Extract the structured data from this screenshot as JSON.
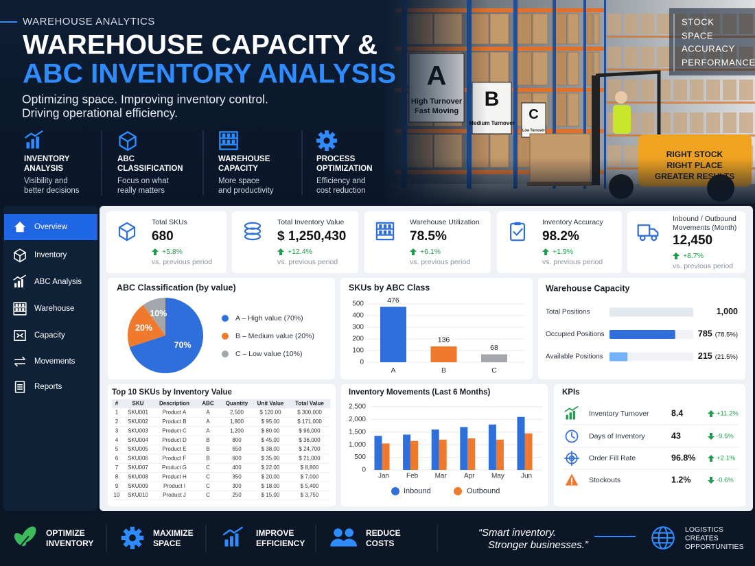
{
  "header": {
    "eyebrow": "WAREHOUSE ANALYTICS",
    "title_lines": [
      "WAREHOUSE CAPACITY &",
      "ABC INVENTORY ANALYSIS"
    ],
    "subtitle_lines": [
      "Optimizing space. Improving inventory control.",
      "Driving operational efficiency."
    ],
    "features": [
      {
        "title_lines": [
          "INVENTORY",
          "ANALYSIS"
        ],
        "desc_lines": [
          "Visibility and",
          "better decisions"
        ]
      },
      {
        "title_lines": [
          "ABC",
          "CLASSIFICATION"
        ],
        "desc_lines": [
          "Focus on what",
          "really matters"
        ]
      },
      {
        "title_lines": [
          "WAREHOUSE",
          "CAPACITY"
        ],
        "desc_lines": [
          "More space",
          "and productivity"
        ]
      },
      {
        "title_lines": [
          "PROCESS",
          "OPTIMIZATION"
        ],
        "desc_lines": [
          "Efficiency and",
          "cost reduction"
        ]
      }
    ],
    "tags": [
      "STOCK",
      "SPACE",
      "ACCURACY",
      "PERFORMANCE"
    ],
    "photo": {
      "bay_signs": [
        {
          "letter": "A",
          "text_lines": [
            "High Turnover",
            "Fast Moving"
          ]
        },
        {
          "letter": "B",
          "text_lines": [
            "Medium Turnover"
          ]
        },
        {
          "letter": "C",
          "text_lines": [
            "Low Turnover"
          ]
        }
      ],
      "forklift_sign": [
        "RIGHT STOCK",
        "RIGHT PLACE",
        "GREATER RESULTS"
      ]
    }
  },
  "sidebar": {
    "items": [
      "Overview",
      "Inventory",
      "ABC Analysis",
      "Warehouse",
      "Capacity",
      "Movements",
      "Reports"
    ]
  },
  "kpi_cards": [
    {
      "label_lines": [
        "Total SKUs"
      ],
      "value": "680",
      "change": "+5.8%",
      "note": "vs. previous period"
    },
    {
      "label_lines": [
        "Total Inventory Value"
      ],
      "value": "$ 1,250,430",
      "change": "+12.4%",
      "note": "vs. previous period"
    },
    {
      "label_lines": [
        "Warehouse Utilization"
      ],
      "value": "78.5%",
      "change": "+6.1%",
      "note": "vs. previous period"
    },
    {
      "label_lines": [
        "Inventory Accuracy"
      ],
      "value": "98.2%",
      "change": "+1.9%",
      "note": "vs. previous period"
    },
    {
      "label_lines": [
        "Inbound / Outbound",
        "Movements (Month)"
      ],
      "value": "12,450",
      "change": "+8.7%",
      "note": "vs. previous period"
    }
  ],
  "abc_pie": {
    "type": "pie",
    "title": "ABC Classification (by value)",
    "categories": [
      "A – High value (70%)",
      "B – Medium value (20%)",
      "C – Low value (10%)"
    ],
    "values": [
      70,
      20,
      10
    ],
    "value_labels": [
      "70%",
      "20%",
      "10%"
    ],
    "colors": [
      "#2f6fdb",
      "#ef7a2d",
      "#a3a6ab"
    ]
  },
  "sku_bar": {
    "type": "bar",
    "title": "SKUs by ABC Class",
    "categories": [
      "A",
      "B",
      "C"
    ],
    "values": [
      476,
      136,
      68
    ],
    "colors": [
      "#2f6fdb",
      "#ef7a2d",
      "#a3a6ab"
    ],
    "ylim": [
      0,
      500
    ],
    "yticks": [
      0,
      100,
      200,
      300,
      400,
      500
    ],
    "grid": true
  },
  "capacity": {
    "type": "hbar",
    "title": "Warehouse Capacity",
    "categories": [
      "Total Positions",
      "Occupied Positions",
      "Available Positions"
    ],
    "values": [
      1000,
      785,
      215
    ],
    "value_labels": [
      "1,000",
      "785",
      "215"
    ],
    "share_labels": [
      null,
      "(78.5%)",
      "(21.5%)"
    ],
    "colors": [
      "#e3e8ef",
      "#2f6fdb",
      "#74b2f7"
    ],
    "xlim": [
      0,
      1000
    ]
  },
  "top_skus": {
    "title": "Top 10 SKUs by Inventory Value",
    "columns": [
      "#",
      "SKU",
      "Description",
      "ABC",
      "Quantity",
      "Unit Value",
      "Total Value"
    ],
    "rows": [
      [
        "1",
        "SKU001",
        "Product A",
        "A",
        "2,500",
        "$ 120.00",
        "$ 300,000"
      ],
      [
        "2",
        "SKU002",
        "Product B",
        "A",
        "1,800",
        "$ 95.00",
        "$ 171,000"
      ],
      [
        "3",
        "SKU003",
        "Product C",
        "A",
        "1,200",
        "$ 80.00",
        "$ 96,000"
      ],
      [
        "4",
        "SKU004",
        "Product D",
        "B",
        "800",
        "$ 45.00",
        "$ 36,000"
      ],
      [
        "5",
        "SKU005",
        "Product E",
        "B",
        "650",
        "$ 38.00",
        "$ 24,700"
      ],
      [
        "6",
        "SKU006",
        "Product F",
        "B",
        "600",
        "$ 35.00",
        "$ 21,000"
      ],
      [
        "7",
        "SKU007",
        "Product G",
        "C",
        "400",
        "$ 22.00",
        "$ 8,800"
      ],
      [
        "8",
        "SKU008",
        "Product H",
        "C",
        "350",
        "$ 20.00",
        "$ 7,000"
      ],
      [
        "9",
        "SKU009",
        "Product I",
        "C",
        "300",
        "$ 18.00",
        "$ 5,400"
      ],
      [
        "10",
        "SKU010",
        "Product J",
        "C",
        "250",
        "$ 15.00",
        "$ 3,750"
      ]
    ]
  },
  "movements": {
    "type": "grouped_bar",
    "title": "Inventory Movements (Last 6 Months)",
    "categories": [
      "Jan",
      "Feb",
      "Mar",
      "Apr",
      "May",
      "Jun"
    ],
    "series": [
      {
        "name": "Inbound",
        "color": "#2f6fdb",
        "values": [
          1350,
          1400,
          1600,
          1700,
          1800,
          2100
        ]
      },
      {
        "name": "Outbound",
        "color": "#ef7a2d",
        "values": [
          1050,
          1150,
          1200,
          1250,
          1200,
          1450
        ]
      }
    ],
    "ylim": [
      0,
      2500
    ],
    "yticks": [
      0,
      500,
      {
        "value": 1000,
        "label": "1,000"
      },
      {
        "value": 1500,
        "label": "1,500"
      },
      {
        "value": 2000,
        "label": "2,000"
      },
      {
        "value": 2500,
        "label": "2,500"
      }
    ],
    "grid": true
  },
  "kpis": {
    "title": "KPIs",
    "rows": [
      {
        "name": "Inventory Turnover",
        "value": "8.4",
        "change": "+11.2%",
        "trend": "up"
      },
      {
        "name": "Days of Inventory",
        "value": "43",
        "change": "-9.5%",
        "trend": "down"
      },
      {
        "name": "Order Fill Rate",
        "value": "96.8%",
        "change": "+2.1%",
        "trend": "up"
      },
      {
        "name": "Stockouts",
        "value": "1.2%",
        "change": "-0.6%",
        "trend": "down"
      }
    ]
  },
  "footer": {
    "benefits": [
      {
        "lines": [
          "OPTIMIZE",
          "INVENTORY"
        ]
      },
      {
        "lines": [
          "MAXIMIZE",
          "SPACE"
        ]
      },
      {
        "lines": [
          "IMPROVE",
          "EFFICIENCY"
        ]
      },
      {
        "lines": [
          "REDUCE",
          "COSTS"
        ]
      }
    ],
    "quote_lines": [
      "“Smart inventory.",
      "Stronger businesses.”"
    ],
    "tagline_lines": [
      "LOGISTICS",
      "CREATES",
      "OPPORTUNITIES"
    ]
  }
}
